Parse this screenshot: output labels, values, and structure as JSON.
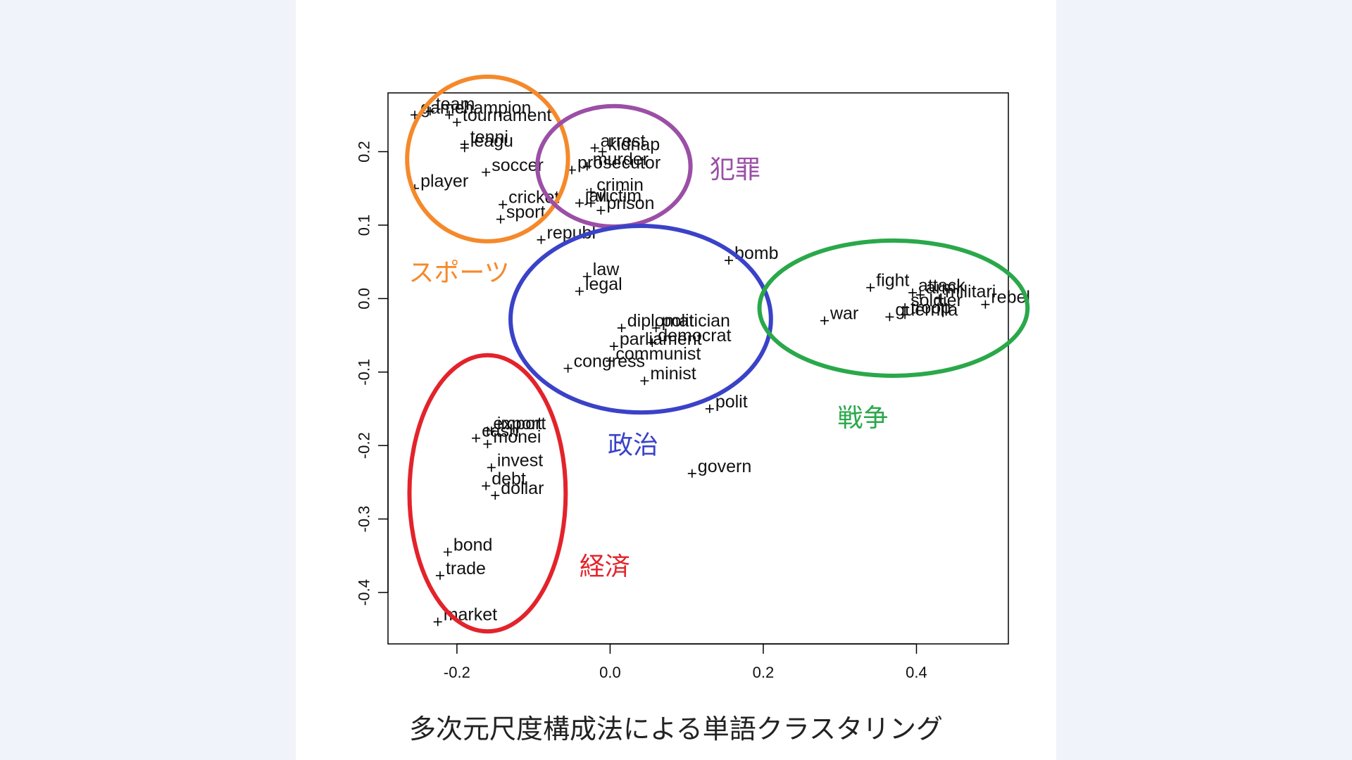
{
  "caption": "多次元尺度構成法による単語クラスタリング",
  "chart_data": {
    "type": "scatter",
    "title": "",
    "xlabel": "",
    "ylabel": "",
    "xlim": [
      -0.29,
      0.52
    ],
    "ylim": [
      -0.47,
      0.28
    ],
    "xticks": [
      {
        "v": -0.2,
        "label": "-0.2"
      },
      {
        "v": 0.0,
        "label": "0.0"
      },
      {
        "v": 0.2,
        "label": "0.2"
      },
      {
        "v": 0.4,
        "label": "0.4"
      }
    ],
    "yticks": [
      {
        "v": -0.4,
        "label": "-0.4"
      },
      {
        "v": -0.3,
        "label": "-0.3"
      },
      {
        "v": -0.2,
        "label": "-0.2"
      },
      {
        "v": -0.1,
        "label": "-0.1"
      },
      {
        "v": 0.0,
        "label": "0.0"
      },
      {
        "v": 0.1,
        "label": "0.1"
      },
      {
        "v": 0.2,
        "label": "0.2"
      }
    ],
    "points": [
      {
        "word": "game",
        "x": -0.255,
        "y": 0.25
      },
      {
        "word": "team",
        "x": -0.235,
        "y": 0.255
      },
      {
        "word": "champion",
        "x": -0.21,
        "y": 0.25
      },
      {
        "word": "tournament",
        "x": -0.2,
        "y": 0.24
      },
      {
        "word": "tenni",
        "x": -0.19,
        "y": 0.21
      },
      {
        "word": "leagu",
        "x": -0.19,
        "y": 0.205
      },
      {
        "word": "soccer",
        "x": -0.162,
        "y": 0.172
      },
      {
        "word": "player",
        "x": -0.255,
        "y": 0.15
      },
      {
        "word": "cricket",
        "x": -0.14,
        "y": 0.128
      },
      {
        "word": "sport",
        "x": -0.143,
        "y": 0.108
      },
      {
        "word": "arrest",
        "x": -0.02,
        "y": 0.205
      },
      {
        "word": "kidnap",
        "x": -0.01,
        "y": 0.2
      },
      {
        "word": "murder",
        "x": -0.03,
        "y": 0.18
      },
      {
        "word": "prosecutor",
        "x": -0.05,
        "y": 0.175
      },
      {
        "word": "crimin",
        "x": -0.025,
        "y": 0.145
      },
      {
        "word": "jail",
        "x": -0.04,
        "y": 0.13
      },
      {
        "word": "victim",
        "x": -0.025,
        "y": 0.13
      },
      {
        "word": "prison",
        "x": -0.012,
        "y": 0.12
      },
      {
        "word": "republ",
        "x": -0.09,
        "y": 0.08
      },
      {
        "word": "legal",
        "x": -0.04,
        "y": 0.01
      },
      {
        "word": "law",
        "x": -0.03,
        "y": 0.03
      },
      {
        "word": "bomb",
        "x": 0.155,
        "y": 0.052
      },
      {
        "word": "diplomat",
        "x": 0.015,
        "y": -0.04
      },
      {
        "word": "politician",
        "x": 0.06,
        "y": -0.04
      },
      {
        "word": "democrat",
        "x": 0.055,
        "y": -0.06
      },
      {
        "word": "parliament",
        "x": 0.005,
        "y": -0.065
      },
      {
        "word": "communist",
        "x": 0.0,
        "y": -0.085
      },
      {
        "word": "congress",
        "x": -0.055,
        "y": -0.095
      },
      {
        "word": "minist",
        "x": 0.045,
        "y": -0.112
      },
      {
        "word": "polit",
        "x": 0.13,
        "y": -0.15
      },
      {
        "word": "govern",
        "x": 0.107,
        "y": -0.238
      },
      {
        "word": "fight",
        "x": 0.34,
        "y": 0.015
      },
      {
        "word": "attack",
        "x": 0.395,
        "y": 0.008
      },
      {
        "word": "armi",
        "x": 0.405,
        "y": 0.005
      },
      {
        "word": "militari",
        "x": 0.43,
        "y": 0.0
      },
      {
        "word": "soldier",
        "x": 0.385,
        "y": -0.012
      },
      {
        "word": "rebel",
        "x": 0.49,
        "y": -0.008
      },
      {
        "word": "troop",
        "x": 0.385,
        "y": -0.022
      },
      {
        "word": "guerrilla",
        "x": 0.365,
        "y": -0.025
      },
      {
        "word": "war",
        "x": 0.28,
        "y": -0.03
      },
      {
        "word": "import",
        "x": -0.155,
        "y": -0.18
      },
      {
        "word": "export",
        "x": -0.16,
        "y": -0.18
      },
      {
        "word": "cash",
        "x": -0.175,
        "y": -0.19
      },
      {
        "word": "monei",
        "x": -0.16,
        "y": -0.198
      },
      {
        "word": "invest",
        "x": -0.155,
        "y": -0.23
      },
      {
        "word": "debt",
        "x": -0.162,
        "y": -0.255
      },
      {
        "word": "dollar",
        "x": -0.15,
        "y": -0.268
      },
      {
        "word": "bond",
        "x": -0.212,
        "y": -0.345
      },
      {
        "word": "trade",
        "x": -0.222,
        "y": -0.377
      },
      {
        "word": "market",
        "x": -0.225,
        "y": -0.44
      }
    ],
    "annotations": [
      {
        "text": "スポーツ",
        "color": "#f5892a"
      },
      {
        "text": "犯罪",
        "color": "#9b4fa6"
      },
      {
        "text": "政治",
        "color": "#3a42c8"
      },
      {
        "text": "戦争",
        "color": "#2aa84a"
      },
      {
        "text": "経済",
        "color": "#e3232b"
      }
    ]
  }
}
